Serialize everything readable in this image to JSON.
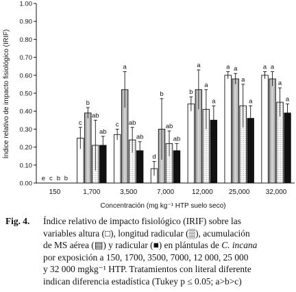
{
  "chart_data": {
    "type": "bar",
    "ylabel": "Índice relativo de impacto fisiológico (IRIF)",
    "xlabel": "Concentración (mg kg⁻¹ HTP suelo seco)",
    "ylim": [
      0,
      1.0
    ],
    "yticks": [
      "0.00",
      "0.10",
      "0.20",
      "0.30",
      "0.40",
      "0.50",
      "0.60",
      "0.70",
      "0.80",
      "0.90",
      "1.00"
    ],
    "categories": [
      "150",
      "1,700",
      "3,500",
      "7,000",
      "12,000",
      "25,000",
      "32,000"
    ],
    "series": [
      {
        "name": "altura",
        "values": [
          0,
          0.25,
          0.27,
          0.08,
          0.44,
          0.6,
          0.6
        ],
        "err": [
          0,
          0.06,
          0.03,
          0.04,
          0.04,
          0.02,
          0.02
        ],
        "letters": [
          "e",
          "c",
          "c",
          "d",
          "b",
          "a",
          "a"
        ]
      },
      {
        "name": "longitud radicular",
        "values": [
          0,
          0.39,
          0.52,
          0.3,
          0.52,
          0.58,
          0.58
        ],
        "err": [
          0,
          0.03,
          0.1,
          0.17,
          0.11,
          0.03,
          0.04
        ],
        "letters": [
          "c",
          "b",
          "a",
          "b",
          "a",
          "a",
          "a"
        ]
      },
      {
        "name": "acumulación de MS aérea",
        "values": [
          0,
          0.21,
          0.24,
          0.22,
          0.41,
          0.43,
          0.45
        ],
        "err": [
          0,
          0.14,
          0.07,
          0.07,
          0.11,
          0.12,
          0.08
        ],
        "letters": [
          "b",
          "ab",
          "ab",
          "ab",
          "a",
          "a",
          "a"
        ]
      },
      {
        "name": "radicular",
        "values": [
          0,
          0.21,
          0.18,
          0.18,
          0.35,
          0.36,
          0.39
        ],
        "err": [
          0,
          0.05,
          0.05,
          0.04,
          0.08,
          0.07,
          0.05
        ],
        "letters": [
          "b",
          "ab",
          "ab",
          "ab",
          "a",
          "a",
          "a"
        ]
      }
    ],
    "legend": "none",
    "grid": false
  },
  "caption": {
    "label": "Fig. 4.",
    "lines": [
      "Índice relativo de impacto fisiológico (IRIF) sobre las",
      "variables altura (□), longitud radicular (▒), acumulación",
      "de MS aérea (▤) y radicular (■) en plántulas de",
      "C. incana",
      "por exposición a 150, 1700, 3500, 7000, 12 000, 25 000",
      "y 32 000 mgkg",
      "⁻¹",
      " HTP. Tratamientos con literal diferente",
      "indican diferencia estadística (Tukey p ≤ 0.05; a>b>c)"
    ]
  }
}
